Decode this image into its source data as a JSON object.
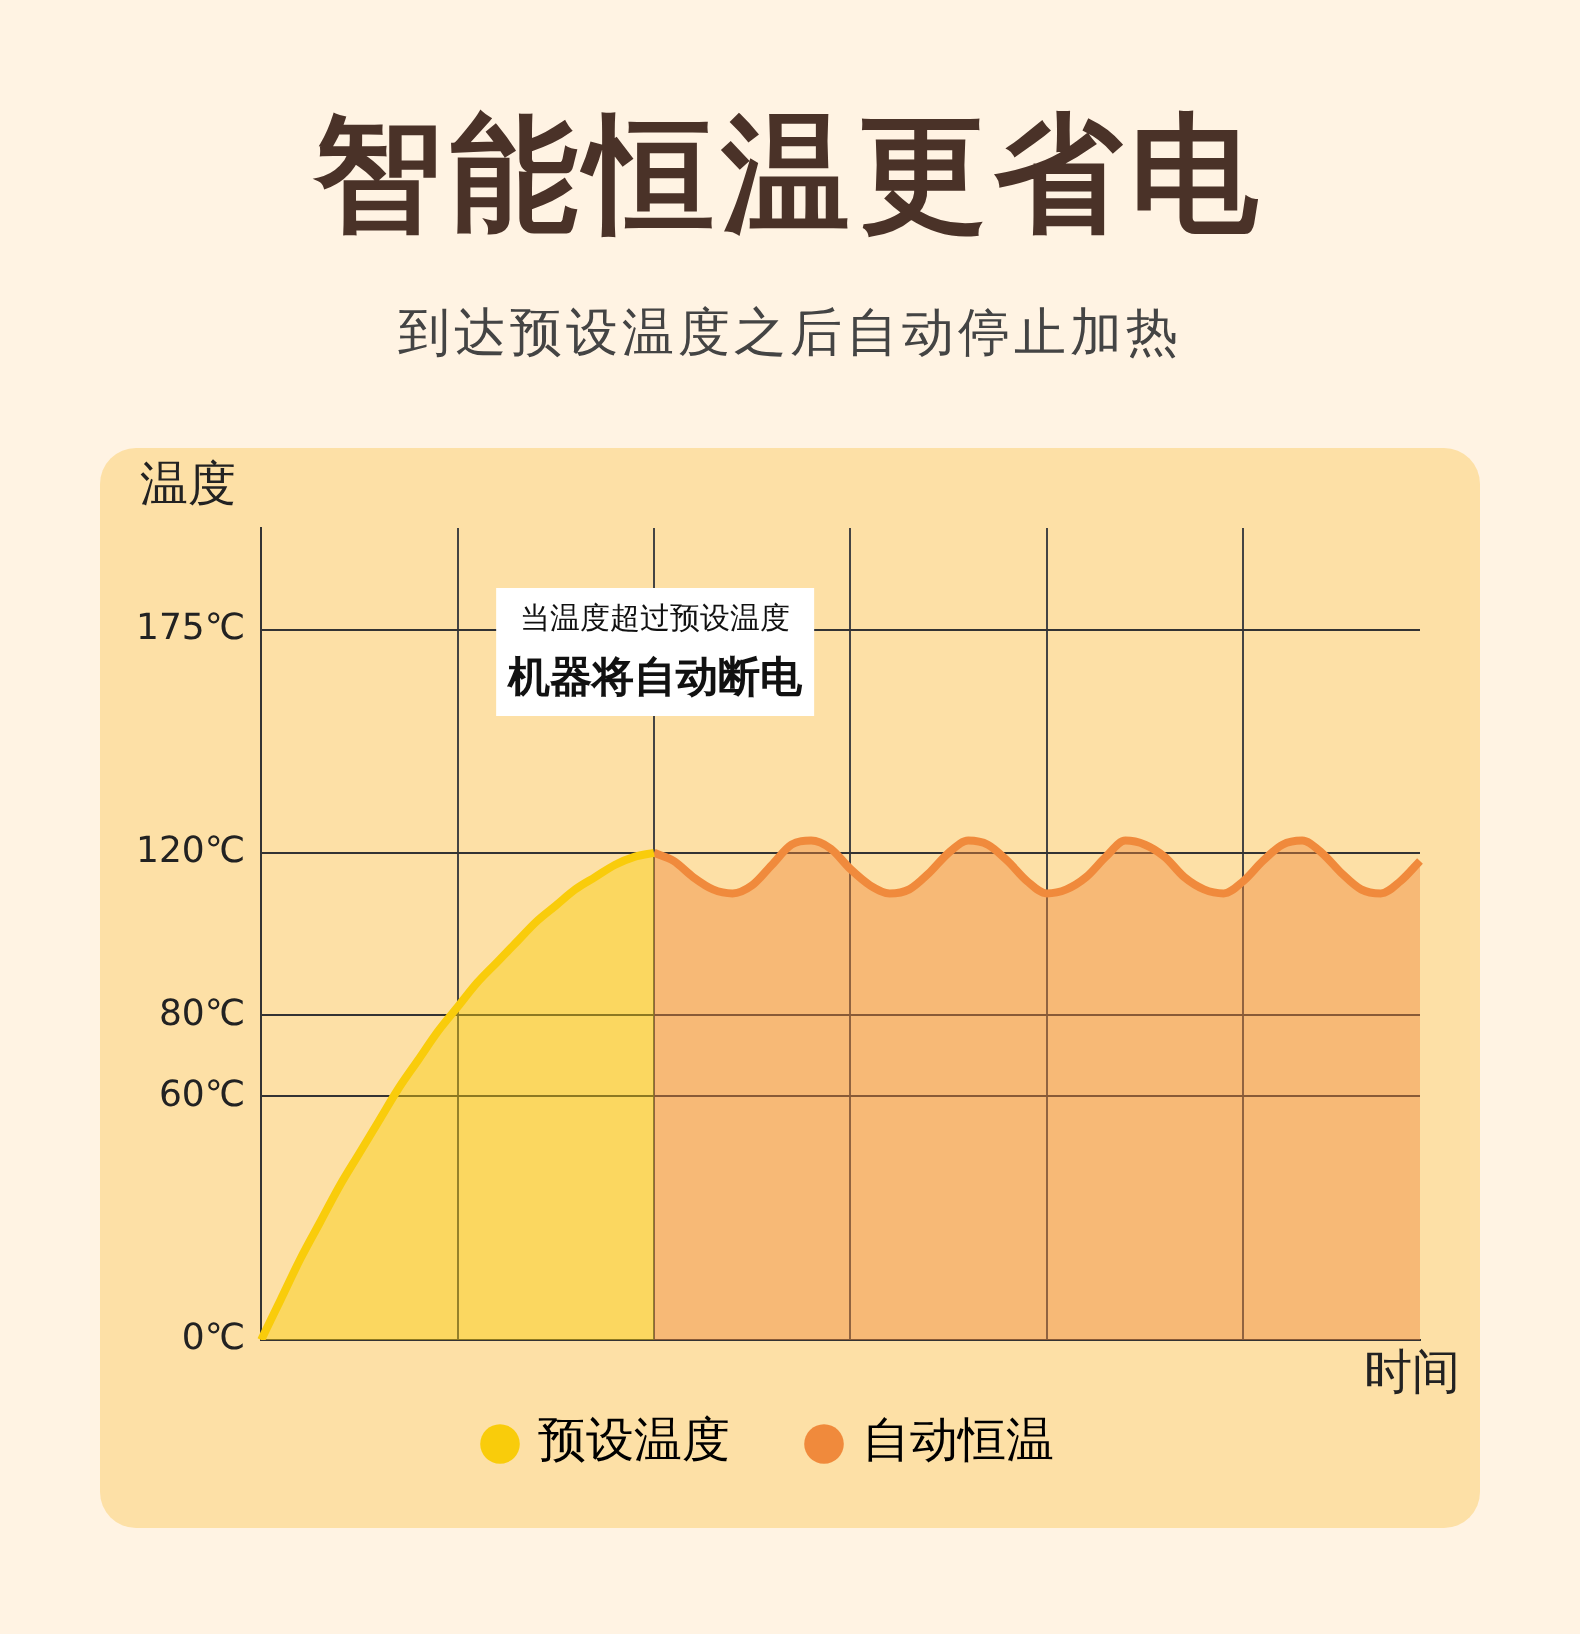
{
  "chart_data": {
    "type": "area",
    "title": "智能恒温更省电",
    "subtitle": "到达预设温度之后自动停止加热",
    "ylabel": "温度",
    "xlabel": "时间",
    "annotations": [
      "当温度超过预设温度",
      "机器将自动断电"
    ],
    "categories": [
      null,
      null,
      null,
      null,
      null,
      null,
      null,
      null,
      null,
      null,
      null,
      null,
      null,
      null,
      null,
      null,
      null,
      null,
      null,
      null,
      null,
      null,
      null,
      null,
      null,
      null,
      null,
      null,
      null,
      null,
      null,
      null,
      null,
      null,
      null,
      null,
      null,
      null,
      null,
      null,
      null,
      null,
      null,
      null,
      null,
      null,
      null,
      null,
      null,
      null,
      null,
      null,
      null,
      null,
      null,
      null,
      null,
      null,
      null,
      null
    ],
    "series": [
      {
        "name": "预设温度",
        "color": "#f9cc0b",
        "values": [
          0,
          10,
          20,
          29,
          38,
          46,
          54,
          62,
          69,
          76,
          82,
          88,
          93,
          98,
          103,
          107,
          111,
          114,
          117,
          119,
          120,
          null,
          null,
          null,
          null,
          null,
          null,
          null,
          null,
          null,
          null,
          null,
          null,
          null,
          null,
          null,
          null,
          null,
          null,
          null,
          null,
          null,
          null,
          null,
          null,
          null,
          null,
          null,
          null,
          null,
          null,
          null,
          null,
          null,
          null,
          null,
          null,
          null,
          null,
          null
        ]
      },
      {
        "name": "自动恒温",
        "color": "#f08a3c",
        "values": [
          null,
          null,
          null,
          null,
          null,
          null,
          null,
          null,
          null,
          null,
          null,
          null,
          null,
          null,
          null,
          null,
          null,
          null,
          null,
          null,
          120,
          118,
          114,
          111,
          110,
          112,
          117,
          122,
          123,
          121,
          116,
          112,
          110,
          111,
          115,
          120,
          123,
          122,
          118,
          113,
          110,
          111,
          114,
          119,
          123,
          122,
          119,
          114,
          111,
          110,
          113,
          118,
          122,
          123,
          120,
          115,
          111,
          110,
          113,
          118
        ]
      }
    ],
    "ylim": [
      0,
      200
    ],
    "yticks": [
      {
        "value": 0,
        "label": "0℃"
      },
      {
        "value": 60,
        "label": "60℃"
      },
      {
        "value": 80,
        "label": "80℃"
      },
      {
        "value": 120,
        "label": "120℃"
      },
      {
        "value": 175,
        "label": "175℃"
      }
    ],
    "grid": true,
    "legend": "bottom",
    "tick_labels": "y"
  }
}
